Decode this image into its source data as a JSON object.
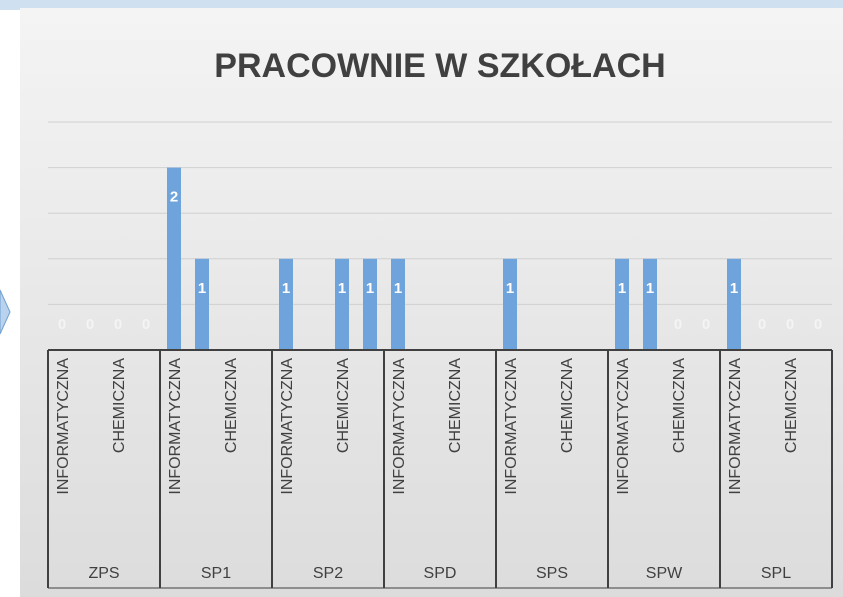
{
  "chart_data": {
    "type": "bar",
    "title": "PRACOWNIE W SZKOŁACH",
    "groups": [
      "ZPS",
      "SP1",
      "SP2",
      "SPD",
      "SPS",
      "SPW",
      "SPL"
    ],
    "categories": [
      "INFORMATYCZNA",
      "CHEMICZNA",
      "INFORMATYCZNA",
      "CHEMICZNA",
      "INFORMATYCZNA",
      "CHEMICZNA",
      "INFORMATYCZNA",
      "CHEMICZNA",
      "INFORMATYCZNA",
      "CHEMICZNA",
      "INFORMATYCZNA",
      "CHEMICZNA",
      "INFORMATYCZNA",
      "CHEMICZNA"
    ],
    "series": [
      {
        "color": "#6fa3dc",
        "values": [
          0,
          0,
          2,
          null,
          1,
          1,
          1,
          null,
          1,
          null,
          1,
          0,
          1,
          0
        ]
      },
      {
        "color": "#6fa3dc",
        "values": [
          0,
          0,
          1,
          null,
          null,
          1,
          null,
          null,
          null,
          null,
          1,
          0,
          0,
          0
        ]
      }
    ],
    "ylim": [
      0,
      2.5
    ],
    "yticks": [
      0,
      0.5,
      1,
      1.5,
      2,
      2.5
    ],
    "grid": true
  }
}
